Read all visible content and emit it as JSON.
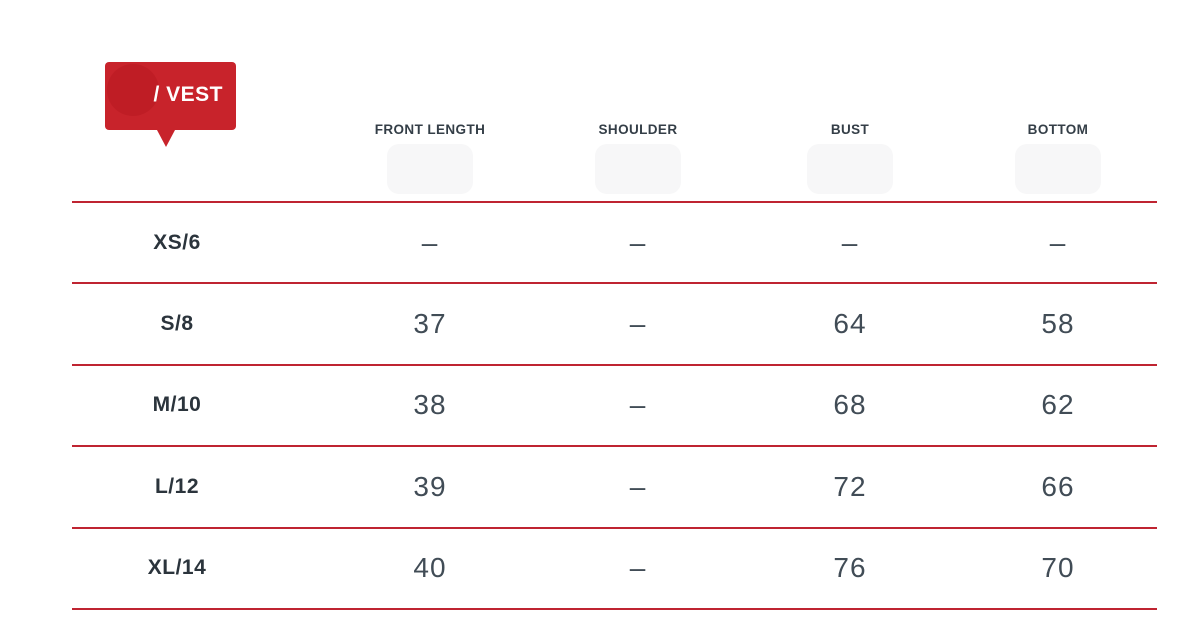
{
  "badge": {
    "label": "/ VEST",
    "background": "#c8232b",
    "circle": "#bf1d25",
    "text_color": "#ffffff"
  },
  "colors": {
    "line": "#bf2431",
    "header_text": "#343e47",
    "size_text": "#2b343c",
    "value_text": "#414c56"
  },
  "chart_data": {
    "type": "table",
    "title": "/ VEST",
    "columns": [
      "FRONT LENGTH",
      "SHOULDER",
      "BUST",
      "BOTTOM"
    ],
    "size_column_header": "",
    "rows": [
      {
        "size": "XS/6",
        "values": [
          "–",
          "–",
          "–",
          "–"
        ]
      },
      {
        "size": "S/8",
        "values": [
          "37",
          "–",
          "64",
          "58"
        ]
      },
      {
        "size": "M/10",
        "values": [
          "38",
          "–",
          "68",
          "62"
        ]
      },
      {
        "size": "L/12",
        "values": [
          "39",
          "–",
          "72",
          "66"
        ]
      },
      {
        "size": "XL/14",
        "values": [
          "40",
          "–",
          "76",
          "70"
        ]
      }
    ]
  }
}
